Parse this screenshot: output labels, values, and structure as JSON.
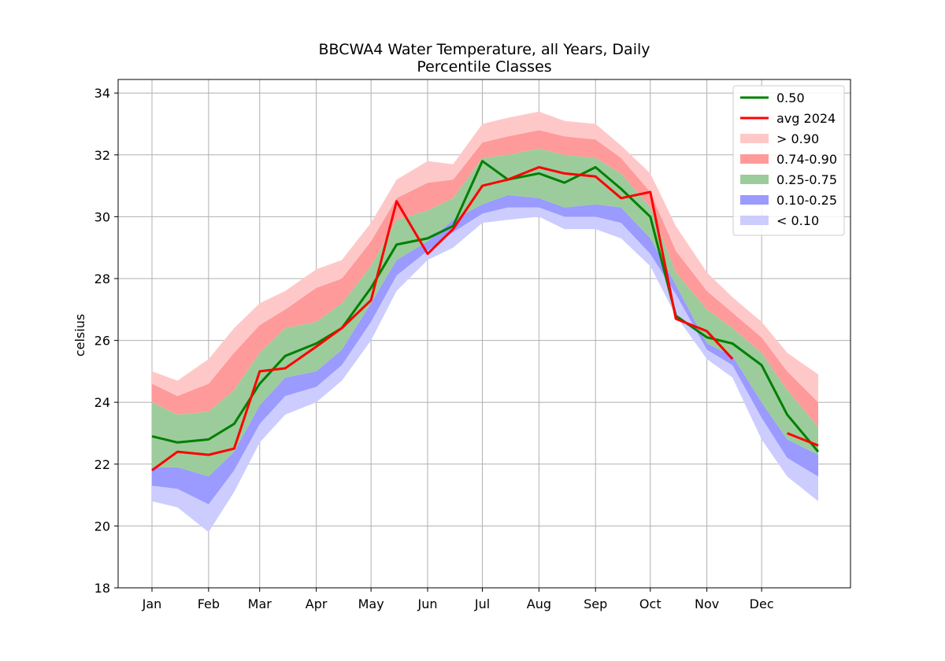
{
  "chart_data": {
    "type": "area",
    "title": "BBCWA4 Water Temperature, all Years, Daily",
    "subtitle": "Percentile Classes",
    "xlabel": "",
    "ylabel": "celsius",
    "xlim": [
      1,
      366
    ],
    "ylim": [
      18,
      34.4
    ],
    "grid": true,
    "legend_position": "top-right",
    "x_ticks": [
      {
        "day": 1,
        "label": "Jan"
      },
      {
        "day": 32,
        "label": "Feb"
      },
      {
        "day": 60,
        "label": "Mar"
      },
      {
        "day": 91,
        "label": "Apr"
      },
      {
        "day": 121,
        "label": "May"
      },
      {
        "day": 152,
        "label": "Jun"
      },
      {
        "day": 182,
        "label": "Jul"
      },
      {
        "day": 213,
        "label": "Aug"
      },
      {
        "day": 244,
        "label": "Sep"
      },
      {
        "day": 274,
        "label": "Oct"
      },
      {
        "day": 305,
        "label": "Nov"
      },
      {
        "day": 335,
        "label": "Dec"
      }
    ],
    "y_ticks": [
      18,
      20,
      22,
      24,
      26,
      28,
      30,
      32,
      34
    ],
    "legend": [
      {
        "label": "0.50",
        "kind": "line",
        "color": "#008000"
      },
      {
        "label": "avg 2024",
        "kind": "line",
        "color": "#ff0000"
      },
      {
        "label": "> 0.90",
        "kind": "patch",
        "color": "#ffc8c8"
      },
      {
        "label": "0.74-0.90",
        "kind": "patch",
        "color": "#ff9a9a"
      },
      {
        "label": "0.25-0.75",
        "kind": "patch",
        "color": "#9ccc9c"
      },
      {
        "label": "0.10-0.25",
        "kind": "patch",
        "color": "#9a9aff"
      },
      {
        "label": "< 0.10",
        "kind": "patch",
        "color": "#ccccff"
      }
    ],
    "series_x": [
      1,
      15,
      32,
      46,
      60,
      74,
      91,
      105,
      121,
      135,
      152,
      166,
      182,
      196,
      213,
      227,
      244,
      258,
      274,
      288,
      305,
      319,
      335,
      349,
      366
    ],
    "series": [
      {
        "name": "< 0.10",
        "values": [
          20.8,
          20.6,
          19.8,
          21.1,
          22.7,
          23.6,
          24.0,
          24.7,
          26.0,
          27.6,
          28.6,
          29.0,
          29.8,
          29.9,
          30.0,
          29.6,
          29.6,
          29.3,
          28.4,
          26.8,
          25.4,
          24.8,
          22.8,
          21.6,
          20.8
        ]
      },
      {
        "name": "0.10",
        "values": [
          21.3,
          21.2,
          20.7,
          21.8,
          23.3,
          24.2,
          24.5,
          25.2,
          26.6,
          28.1,
          28.9,
          29.5,
          30.1,
          30.3,
          30.3,
          30.0,
          30.0,
          29.8,
          28.8,
          27.5,
          25.7,
          25.2,
          23.5,
          22.2,
          21.6
        ]
      },
      {
        "name": "0.25",
        "values": [
          21.9,
          21.9,
          21.6,
          22.4,
          23.9,
          24.8,
          25.0,
          25.7,
          27.2,
          28.6,
          29.2,
          29.9,
          30.4,
          30.7,
          30.6,
          30.3,
          30.4,
          30.3,
          29.3,
          27.8,
          25.9,
          25.5,
          24.0,
          22.8,
          22.3
        ]
      },
      {
        "name": "0.50",
        "values": [
          22.9,
          22.7,
          22.8,
          23.3,
          24.6,
          25.5,
          25.9,
          26.4,
          27.7,
          29.1,
          29.3,
          29.7,
          31.8,
          31.2,
          31.4,
          31.1,
          31.6,
          30.9,
          30.0,
          26.8,
          26.1,
          25.9,
          25.2,
          23.6,
          22.4
        ]
      },
      {
        "name": "0.75",
        "values": [
          24.0,
          23.6,
          23.7,
          24.4,
          25.6,
          26.4,
          26.6,
          27.2,
          28.4,
          29.9,
          30.2,
          30.6,
          31.9,
          32.0,
          32.2,
          32.0,
          31.9,
          31.4,
          30.3,
          28.2,
          27.0,
          26.4,
          25.6,
          24.4,
          23.2
        ]
      },
      {
        "name": "0.90",
        "values": [
          24.6,
          24.2,
          24.6,
          25.6,
          26.5,
          27.0,
          27.7,
          28.0,
          29.2,
          30.6,
          31.1,
          31.2,
          32.4,
          32.6,
          32.8,
          32.6,
          32.5,
          31.9,
          30.8,
          28.9,
          27.6,
          26.9,
          26.1,
          25.0,
          24.0
        ]
      },
      {
        "name": "> 0.90",
        "values": [
          25.0,
          24.7,
          25.4,
          26.4,
          27.2,
          27.6,
          28.3,
          28.6,
          29.8,
          31.2,
          31.8,
          31.7,
          33.0,
          33.2,
          33.4,
          33.1,
          33.0,
          32.3,
          31.4,
          29.7,
          28.2,
          27.4,
          26.6,
          25.6,
          24.9
        ]
      },
      {
        "name": "avg 2024",
        "values": [
          21.8,
          22.4,
          22.3,
          22.5,
          25.0,
          25.1,
          25.8,
          26.4,
          27.3,
          30.5,
          28.8,
          29.6,
          31.0,
          31.2,
          31.6,
          31.4,
          31.3,
          30.6,
          30.8,
          26.7,
          26.3,
          25.4,
          null,
          23.0,
          22.6
        ]
      }
    ],
    "avg_2024_gap_days": [
      326,
      344
    ]
  }
}
